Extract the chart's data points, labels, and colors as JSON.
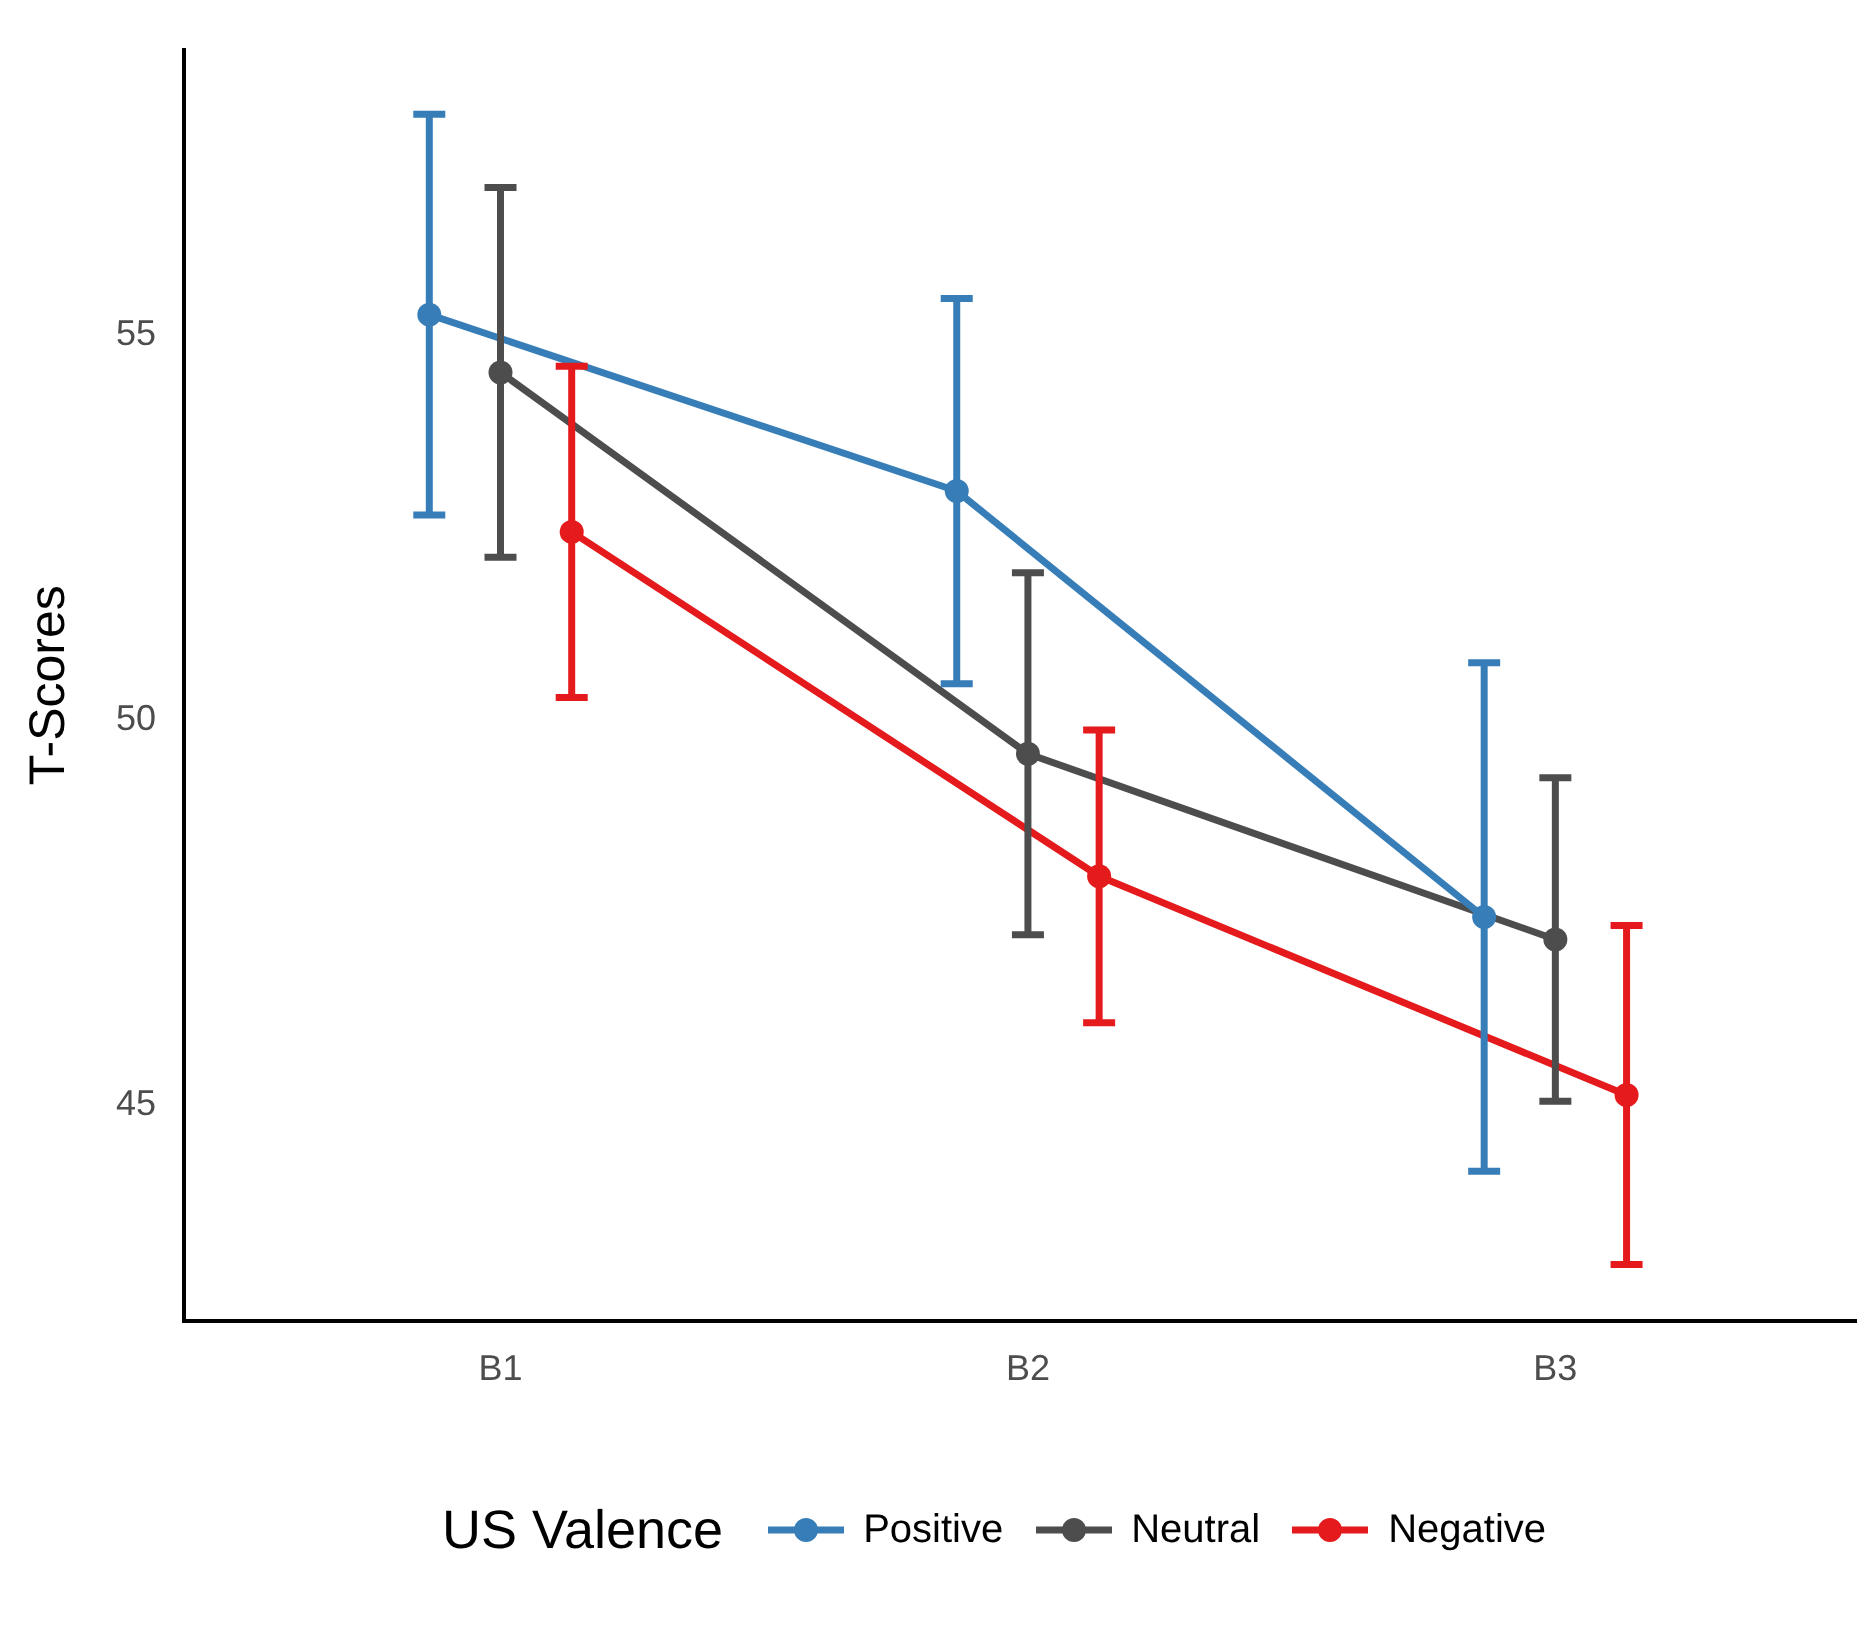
{
  "chart_data": {
    "type": "line",
    "ylabel": "T-Scores",
    "legend_title": "US Valence",
    "categories": [
      "B1",
      "B2",
      "B3"
    ],
    "ylim": [
      42.2,
      58.7
    ],
    "yticks": [
      45,
      50,
      55
    ],
    "grid": false,
    "legend": "bottom",
    "marker": "circle",
    "line_style": "solid",
    "series": [
      {
        "name": "Positive",
        "color": "#377eb8",
        "values": [
          55.26,
          52.97,
          47.44
        ],
        "errors": [
          2.6,
          2.5,
          3.3
        ]
      },
      {
        "name": "Neutral",
        "color": "#4d4d4d",
        "values": [
          54.51,
          49.56,
          47.15
        ],
        "errors": [
          2.4,
          2.35,
          2.1
        ]
      },
      {
        "name": "Negative",
        "color": "#e41a1c",
        "values": [
          52.44,
          47.97,
          45.13
        ],
        "errors": [
          2.15,
          1.9,
          2.2
        ]
      }
    ]
  }
}
